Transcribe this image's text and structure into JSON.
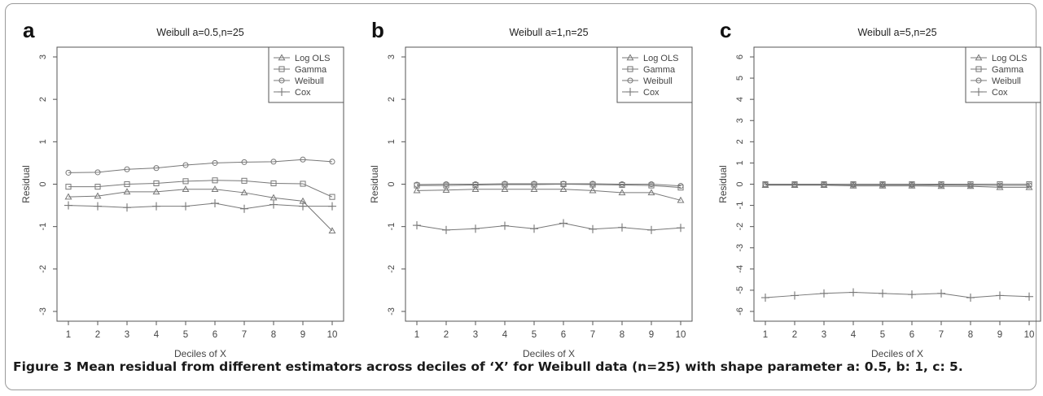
{
  "caption": {
    "label": "Figure 3",
    "text": "Mean residual from different estimators across deciles of ‘X’ for Weibull data (n=25) with shape parameter a: 0.5, b: 1, c: 5."
  },
  "colors": {
    "line": "#777777",
    "axis": "#555555",
    "text": "#444444",
    "frame": "#9a9a9a"
  },
  "chart_data": [
    {
      "panel": "a",
      "type": "line",
      "title": "Weibull a=0.5,n=25",
      "xlabel": "Deciles of X",
      "ylabel": "Residual",
      "x": [
        1,
        2,
        3,
        4,
        5,
        6,
        7,
        8,
        9,
        10
      ],
      "xticks": [
        "1",
        "2",
        "3",
        "4",
        "5",
        "6",
        "7",
        "8",
        "9",
        "10"
      ],
      "ylim": [
        -3,
        3
      ],
      "yticks": [
        "-3",
        "-2",
        "-1",
        "0",
        "1",
        "2",
        "3"
      ],
      "legend": "top-right",
      "series": [
        {
          "name": "Log OLS",
          "marker": "triangle",
          "values": [
            -0.3,
            -0.28,
            -0.18,
            -0.18,
            -0.12,
            -0.12,
            -0.2,
            -0.32,
            -0.4,
            -1.1
          ]
        },
        {
          "name": "Gamma",
          "marker": "square",
          "values": [
            -0.06,
            -0.06,
            0.0,
            0.02,
            0.07,
            0.09,
            0.08,
            0.02,
            0.01,
            -0.3
          ]
        },
        {
          "name": "Weibull",
          "marker": "circle",
          "values": [
            0.27,
            0.28,
            0.35,
            0.38,
            0.45,
            0.5,
            0.52,
            0.53,
            0.58,
            0.53
          ]
        },
        {
          "name": "Cox",
          "marker": "plus",
          "values": [
            -0.5,
            -0.52,
            -0.55,
            -0.52,
            -0.52,
            -0.45,
            -0.58,
            -0.48,
            -0.52,
            -0.52
          ]
        }
      ]
    },
    {
      "panel": "b",
      "type": "line",
      "title": "Weibull a=1,n=25",
      "xlabel": "Deciles of X",
      "ylabel": "Residual",
      "x": [
        1,
        2,
        3,
        4,
        5,
        6,
        7,
        8,
        9,
        10
      ],
      "xticks": [
        "1",
        "2",
        "3",
        "4",
        "5",
        "6",
        "7",
        "8",
        "9",
        "10"
      ],
      "ylim": [
        -3,
        3
      ],
      "yticks": [
        "-3",
        "-2",
        "-1",
        "0",
        "1",
        "2",
        "3"
      ],
      "legend": "top-right",
      "series": [
        {
          "name": "Log OLS",
          "marker": "triangle",
          "values": [
            -0.15,
            -0.14,
            -0.12,
            -0.12,
            -0.12,
            -0.12,
            -0.15,
            -0.2,
            -0.2,
            -0.38
          ]
        },
        {
          "name": "Gamma",
          "marker": "square",
          "values": [
            -0.03,
            -0.03,
            -0.02,
            -0.01,
            -0.01,
            0.0,
            -0.01,
            -0.02,
            -0.03,
            -0.08
          ]
        },
        {
          "name": "Weibull",
          "marker": "circle",
          "values": [
            -0.01,
            0.0,
            0.0,
            0.01,
            0.01,
            0.01,
            0.01,
            0.0,
            0.0,
            -0.04
          ]
        },
        {
          "name": "Cox",
          "marker": "plus",
          "values": [
            -0.97,
            -1.08,
            -1.05,
            -0.98,
            -1.05,
            -0.92,
            -1.06,
            -1.02,
            -1.08,
            -1.03
          ]
        }
      ]
    },
    {
      "panel": "c",
      "type": "line",
      "title": "Weibull a=5,n=25",
      "xlabel": "Deciles of X",
      "ylabel": "Residual",
      "x": [
        1,
        2,
        3,
        4,
        5,
        6,
        7,
        8,
        9,
        10
      ],
      "xticks": [
        "1",
        "2",
        "3",
        "4",
        "5",
        "6",
        "7",
        "8",
        "9",
        "10"
      ],
      "ylim": [
        -6,
        6
      ],
      "yticks": [
        "-6",
        "-5",
        "-4",
        "-3",
        "-2",
        "-1",
        "0",
        "1",
        "2",
        "3",
        "4",
        "5",
        "6"
      ],
      "legend": "top-right",
      "series": [
        {
          "name": "Log OLS",
          "marker": "triangle",
          "values": [
            -0.05,
            -0.05,
            -0.05,
            -0.08,
            -0.08,
            -0.08,
            -0.1,
            -0.1,
            -0.15,
            -0.15
          ]
        },
        {
          "name": "Gamma",
          "marker": "square",
          "values": [
            0.0,
            0.0,
            0.0,
            0.0,
            0.0,
            0.0,
            0.0,
            0.0,
            0.0,
            0.0
          ]
        },
        {
          "name": "Weibull",
          "marker": "circle",
          "values": [
            -0.02,
            -0.02,
            -0.02,
            -0.03,
            -0.03,
            -0.03,
            -0.04,
            -0.05,
            -0.06,
            -0.06
          ]
        },
        {
          "name": "Cox",
          "marker": "plus",
          "values": [
            -5.35,
            -5.25,
            -5.15,
            -5.1,
            -5.15,
            -5.2,
            -5.15,
            -5.35,
            -5.25,
            -5.3
          ]
        }
      ]
    }
  ]
}
